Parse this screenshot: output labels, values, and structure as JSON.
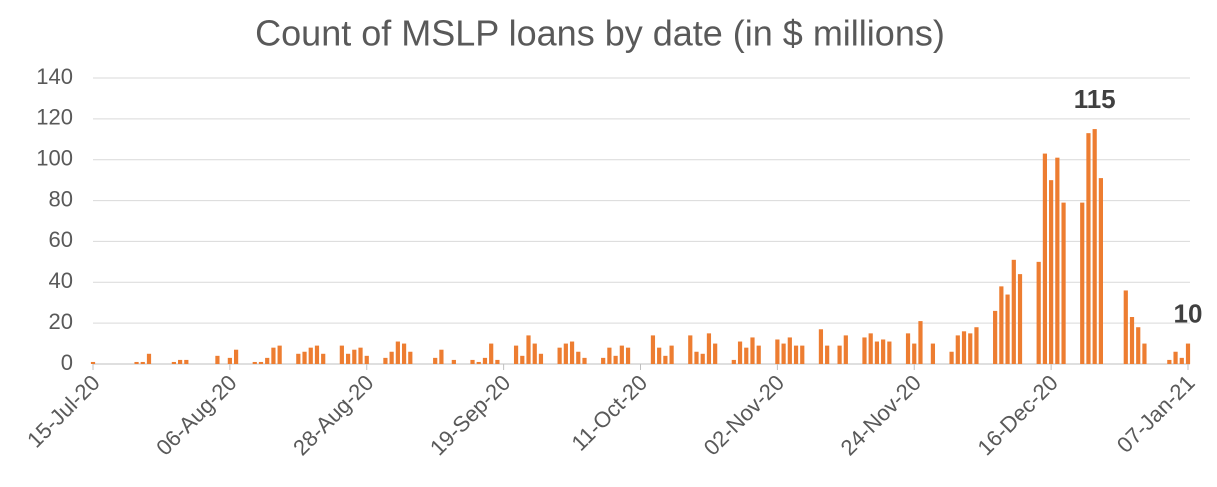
{
  "chart_data": {
    "type": "bar",
    "title": "Count of MSLP loans by date (in $ millions)",
    "x": [
      "2020-07-15",
      "2020-07-22",
      "2020-07-23",
      "2020-07-24",
      "2020-07-28",
      "2020-07-29",
      "2020-07-30",
      "2020-08-04",
      "2020-08-06",
      "2020-08-07",
      "2020-08-10",
      "2020-08-11",
      "2020-08-12",
      "2020-08-13",
      "2020-08-14",
      "2020-08-17",
      "2020-08-18",
      "2020-08-19",
      "2020-08-20",
      "2020-08-21",
      "2020-08-24",
      "2020-08-25",
      "2020-08-26",
      "2020-08-27",
      "2020-08-28",
      "2020-08-31",
      "2020-09-01",
      "2020-09-02",
      "2020-09-03",
      "2020-09-04",
      "2020-09-08",
      "2020-09-09",
      "2020-09-11",
      "2020-09-14",
      "2020-09-15",
      "2020-09-16",
      "2020-09-17",
      "2020-09-18",
      "2020-09-21",
      "2020-09-22",
      "2020-09-23",
      "2020-09-24",
      "2020-09-25",
      "2020-09-28",
      "2020-09-29",
      "2020-09-30",
      "2020-10-01",
      "2020-10-02",
      "2020-10-05",
      "2020-10-06",
      "2020-10-07",
      "2020-10-08",
      "2020-10-09",
      "2020-10-13",
      "2020-10-14",
      "2020-10-15",
      "2020-10-16",
      "2020-10-19",
      "2020-10-20",
      "2020-10-21",
      "2020-10-22",
      "2020-10-23",
      "2020-10-26",
      "2020-10-27",
      "2020-10-28",
      "2020-10-29",
      "2020-10-30",
      "2020-11-02",
      "2020-11-03",
      "2020-11-04",
      "2020-11-05",
      "2020-11-06",
      "2020-11-09",
      "2020-11-10",
      "2020-11-12",
      "2020-11-13",
      "2020-11-16",
      "2020-11-17",
      "2020-11-18",
      "2020-11-19",
      "2020-11-20",
      "2020-11-23",
      "2020-11-24",
      "2020-11-25",
      "2020-11-27",
      "2020-11-30",
      "2020-12-01",
      "2020-12-02",
      "2020-12-03",
      "2020-12-04",
      "2020-12-07",
      "2020-12-08",
      "2020-12-09",
      "2020-12-10",
      "2020-12-11",
      "2020-12-14",
      "2020-12-15",
      "2020-12-16",
      "2020-12-17",
      "2020-12-18",
      "2020-12-21",
      "2020-12-22",
      "2020-12-23",
      "2020-12-24",
      "2020-12-28",
      "2020-12-29",
      "2020-12-30",
      "2020-12-31",
      "2021-01-04",
      "2021-01-05",
      "2021-01-06",
      "2021-01-07"
    ],
    "values": [
      1,
      1,
      1,
      5,
      1,
      2,
      2,
      4,
      3,
      7,
      1,
      1,
      3,
      8,
      9,
      5,
      6,
      8,
      9,
      5,
      9,
      5,
      7,
      8,
      4,
      3,
      6,
      11,
      10,
      6,
      3,
      7,
      2,
      2,
      1,
      3,
      10,
      2,
      9,
      4,
      14,
      10,
      5,
      8,
      10,
      11,
      6,
      3,
      3,
      8,
      4,
      9,
      8,
      14,
      8,
      4,
      9,
      14,
      6,
      5,
      15,
      10,
      2,
      11,
      8,
      13,
      9,
      12,
      10,
      13,
      9,
      9,
      17,
      9,
      9,
      14,
      13,
      15,
      11,
      12,
      11,
      15,
      10,
      21,
      10,
      6,
      14,
      16,
      15,
      18,
      26,
      38,
      34,
      51,
      44,
      50,
      103,
      90,
      101,
      79,
      79,
      113,
      115,
      91,
      36,
      23,
      18,
      10,
      2,
      6,
      3,
      10
    ],
    "value_labels": [
      null,
      null,
      null,
      null,
      null,
      null,
      null,
      null,
      null,
      null,
      null,
      null,
      null,
      null,
      null,
      null,
      null,
      null,
      null,
      null,
      null,
      null,
      null,
      null,
      null,
      null,
      null,
      null,
      null,
      null,
      null,
      null,
      null,
      null,
      null,
      null,
      null,
      null,
      null,
      null,
      null,
      null,
      null,
      null,
      null,
      null,
      null,
      null,
      null,
      null,
      null,
      null,
      null,
      null,
      null,
      null,
      null,
      null,
      null,
      null,
      null,
      null,
      null,
      null,
      null,
      null,
      null,
      null,
      null,
      null,
      null,
      null,
      null,
      null,
      null,
      null,
      null,
      null,
      null,
      null,
      null,
      null,
      null,
      null,
      null,
      null,
      null,
      null,
      null,
      null,
      null,
      null,
      null,
      null,
      null,
      null,
      null,
      null,
      null,
      null,
      null,
      null,
      "115",
      null,
      null,
      null,
      null,
      null,
      null,
      null,
      null,
      "10"
    ],
    "color": "#ed7d31",
    "xlim": [
      "2020-07-15",
      "2021-01-07"
    ],
    "xticks": [
      {
        "value": "2020-07-15",
        "label": "15-Jul-20"
      },
      {
        "value": "2020-08-06",
        "label": "06-Aug-20"
      },
      {
        "value": "2020-08-28",
        "label": "28-Aug-20"
      },
      {
        "value": "2020-09-19",
        "label": "19-Sep-20"
      },
      {
        "value": "2020-10-11",
        "label": "11-Oct-20"
      },
      {
        "value": "2020-11-02",
        "label": "02-Nov-20"
      },
      {
        "value": "2020-11-24",
        "label": "24-Nov-20"
      },
      {
        "value": "2020-12-16",
        "label": "16-Dec-20"
      },
      {
        "value": "2021-01-07",
        "label": "07-Jan-21"
      }
    ],
    "ylim": [
      0,
      140
    ],
    "yticks": [
      0,
      20,
      40,
      60,
      80,
      100,
      120,
      140
    ],
    "grid": true
  }
}
